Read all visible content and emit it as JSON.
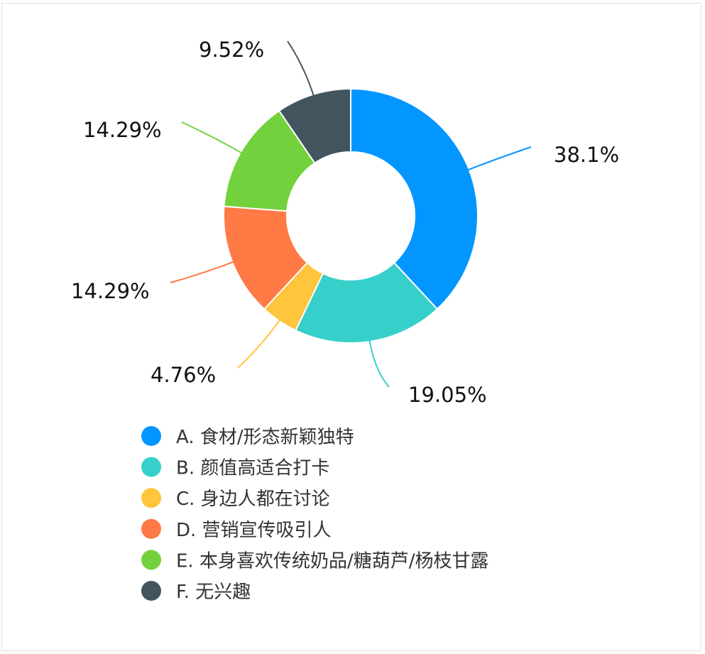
{
  "chart_data": {
    "type": "pie",
    "donut": true,
    "legend_position": "bottom",
    "categories": [
      "A. 食材/形态新颖独特",
      "B. 颜值高适合打卡",
      "C. 身边人都在讨论",
      "D. 营销宣传吸引人",
      "E. 本身喜欢传统奶品/糖葫芦/杨枝甘露",
      "F. 无兴趣"
    ],
    "values": [
      38.1,
      19.05,
      4.76,
      14.29,
      14.29,
      9.52
    ],
    "labels": [
      "38.1%",
      "19.05%",
      "4.76%",
      "14.29%",
      "14.29%",
      "9.52%"
    ],
    "colors": [
      "#0496FF",
      "#36CFCA",
      "#FEC53D",
      "#FF7A45",
      "#73D13D",
      "#42555F"
    ]
  }
}
